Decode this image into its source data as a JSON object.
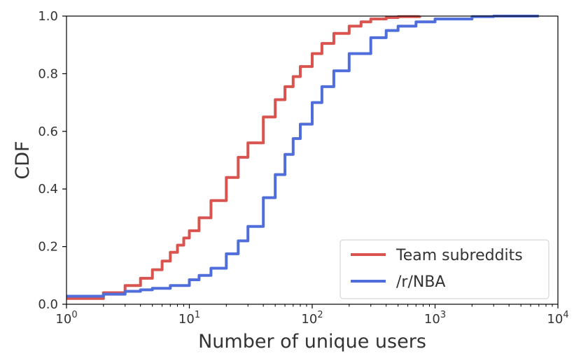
{
  "chart_data": {
    "type": "line",
    "title": "",
    "xlabel": "Number of unique users",
    "ylabel": "CDF",
    "x_scale": "log",
    "xlim": [
      1,
      10000
    ],
    "ylim": [
      0,
      1
    ],
    "grid": false,
    "legend_position": "bottom-right",
    "x_ticks": [
      {
        "value": 1,
        "base": "10",
        "exp": "0"
      },
      {
        "value": 10,
        "base": "10",
        "exp": "1"
      },
      {
        "value": 100,
        "base": "10",
        "exp": "2"
      },
      {
        "value": 1000,
        "base": "10",
        "exp": "3"
      },
      {
        "value": 10000,
        "base": "10",
        "exp": "4"
      }
    ],
    "y_ticks": [
      {
        "value": 0,
        "label": "0.0"
      },
      {
        "value": 0.2,
        "label": "0.2"
      },
      {
        "value": 0.4,
        "label": "0.4"
      },
      {
        "value": 0.6,
        "label": "0.6"
      },
      {
        "value": 0.8,
        "label": "0.8"
      },
      {
        "value": 1.0,
        "label": "1.0"
      }
    ],
    "series": [
      {
        "name": "Team subreddits",
        "color": "#d9534f",
        "points": [
          [
            1,
            0.02
          ],
          [
            2,
            0.04
          ],
          [
            3,
            0.065
          ],
          [
            4,
            0.09
          ],
          [
            5,
            0.12
          ],
          [
            6,
            0.15
          ],
          [
            7,
            0.18
          ],
          [
            8,
            0.205
          ],
          [
            9,
            0.23
          ],
          [
            10,
            0.255
          ],
          [
            12,
            0.3
          ],
          [
            15,
            0.36
          ],
          [
            20,
            0.44
          ],
          [
            25,
            0.51
          ],
          [
            30,
            0.56
          ],
          [
            40,
            0.65
          ],
          [
            50,
            0.71
          ],
          [
            60,
            0.755
          ],
          [
            70,
            0.79
          ],
          [
            80,
            0.825
          ],
          [
            100,
            0.87
          ],
          [
            120,
            0.905
          ],
          [
            150,
            0.94
          ],
          [
            200,
            0.965
          ],
          [
            250,
            0.98
          ],
          [
            300,
            0.99
          ],
          [
            400,
            0.995
          ],
          [
            500,
            0.998
          ],
          [
            750,
            1.0
          ]
        ]
      },
      {
        "name": "/r/NBA",
        "color": "#4f6edb",
        "points": [
          [
            1,
            0.028
          ],
          [
            2,
            0.035
          ],
          [
            3,
            0.045
          ],
          [
            4,
            0.05
          ],
          [
            5,
            0.055
          ],
          [
            7,
            0.065
          ],
          [
            10,
            0.085
          ],
          [
            12,
            0.1
          ],
          [
            15,
            0.125
          ],
          [
            20,
            0.175
          ],
          [
            25,
            0.22
          ],
          [
            30,
            0.27
          ],
          [
            40,
            0.37
          ],
          [
            50,
            0.45
          ],
          [
            60,
            0.52
          ],
          [
            70,
            0.575
          ],
          [
            80,
            0.625
          ],
          [
            100,
            0.7
          ],
          [
            120,
            0.755
          ],
          [
            150,
            0.81
          ],
          [
            200,
            0.87
          ],
          [
            300,
            0.925
          ],
          [
            400,
            0.95
          ],
          [
            500,
            0.965
          ],
          [
            700,
            0.98
          ],
          [
            1000,
            0.99
          ],
          [
            2000,
            0.998
          ],
          [
            3000,
            1.0
          ],
          [
            7000,
            1.0
          ]
        ]
      }
    ]
  }
}
